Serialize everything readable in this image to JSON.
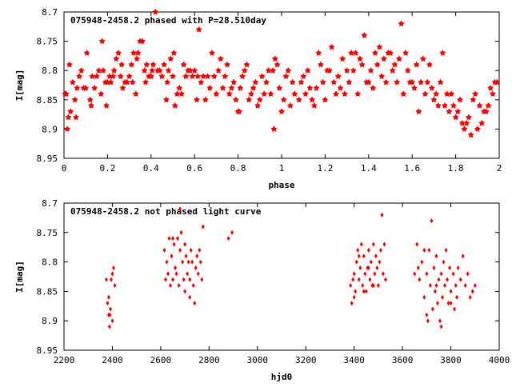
{
  "chart_data": [
    {
      "type": "scatter",
      "title": "075948-2458.2 phased with P=28.510day",
      "xlabel": "phase",
      "ylabel": "I[mag]",
      "xlim": [
        0,
        2
      ],
      "ylim": [
        8.7,
        8.95
      ],
      "y_inverted": true,
      "grid": false,
      "legend": "none",
      "marker": "star",
      "color": "#ff0000",
      "x_ticks": [
        "0",
        "0.2",
        "0.4",
        "0.6",
        "0.8",
        "1",
        "1.2",
        "1.4",
        "1.6",
        "1.8",
        "2"
      ],
      "y_ticks": [
        "8.7",
        "8.75",
        "8.8",
        "8.85",
        "8.9",
        "8.95"
      ],
      "points": [
        [
          0.005,
          8.84
        ],
        [
          0.01,
          8.84
        ],
        [
          0.015,
          8.9
        ],
        [
          0.02,
          8.88
        ],
        [
          0.025,
          8.79
        ],
        [
          0.03,
          8.87
        ],
        [
          0.04,
          8.82
        ],
        [
          0.05,
          8.85
        ],
        [
          0.055,
          8.88
        ],
        [
          0.06,
          8.83
        ],
        [
          0.07,
          8.81
        ],
        [
          0.08,
          8.8
        ],
        [
          0.09,
          8.83
        ],
        [
          0.1,
          8.83
        ],
        [
          0.105,
          8.77
        ],
        [
          0.12,
          8.85
        ],
        [
          0.125,
          8.86
        ],
        [
          0.13,
          8.81
        ],
        [
          0.14,
          8.83
        ],
        [
          0.15,
          8.81
        ],
        [
          0.16,
          8.8
        ],
        [
          0.17,
          8.84
        ],
        [
          0.175,
          8.75
        ],
        [
          0.18,
          8.8
        ],
        [
          0.19,
          8.82
        ],
        [
          0.195,
          8.86
        ],
        [
          0.2,
          8.82
        ],
        [
          0.21,
          8.81
        ],
        [
          0.215,
          8.82
        ],
        [
          0.225,
          8.81
        ],
        [
          0.23,
          8.8
        ],
        [
          0.24,
          8.78
        ],
        [
          0.25,
          8.77
        ],
        [
          0.26,
          8.81
        ],
        [
          0.265,
          8.79
        ],
        [
          0.27,
          8.83
        ],
        [
          0.28,
          8.82
        ],
        [
          0.29,
          8.82
        ],
        [
          0.3,
          8.81
        ],
        [
          0.31,
          8.79
        ],
        [
          0.315,
          8.82
        ],
        [
          0.32,
          8.77
        ],
        [
          0.33,
          8.84
        ],
        [
          0.335,
          8.78
        ],
        [
          0.34,
          8.77
        ],
        [
          0.35,
          8.75
        ],
        [
          0.36,
          8.75
        ],
        [
          0.37,
          8.8
        ],
        [
          0.375,
          8.82
        ],
        [
          0.38,
          8.79
        ],
        [
          0.39,
          8.81
        ],
        [
          0.4,
          8.81
        ],
        [
          0.405,
          8.8
        ],
        [
          0.41,
          8.79
        ],
        [
          0.42,
          8.7
        ],
        [
          0.43,
          8.8
        ],
        [
          0.44,
          8.8
        ],
        [
          0.45,
          8.81
        ],
        [
          0.46,
          8.79
        ],
        [
          0.47,
          8.85
        ],
        [
          0.475,
          8.82
        ],
        [
          0.48,
          8.8
        ],
        [
          0.49,
          8.78
        ],
        [
          0.5,
          8.81
        ],
        [
          0.505,
          8.77
        ],
        [
          0.51,
          8.86
        ],
        [
          0.52,
          8.84
        ],
        [
          0.53,
          8.83
        ],
        [
          0.54,
          8.84
        ],
        [
          0.55,
          8.79
        ],
        [
          0.56,
          8.81
        ],
        [
          0.57,
          8.8
        ],
        [
          0.58,
          8.8
        ],
        [
          0.59,
          8.81
        ],
        [
          0.6,
          8.8
        ],
        [
          0.61,
          8.85
        ],
        [
          0.615,
          8.81
        ],
        [
          0.62,
          8.73
        ],
        [
          0.63,
          8.82
        ],
        [
          0.64,
          8.81
        ],
        [
          0.65,
          8.85
        ],
        [
          0.66,
          8.81
        ],
        [
          0.67,
          8.83
        ],
        [
          0.68,
          8.77
        ],
        [
          0.69,
          8.81
        ],
        [
          0.7,
          8.84
        ],
        [
          0.71,
          8.8
        ],
        [
          0.72,
          8.78
        ],
        [
          0.73,
          8.83
        ],
        [
          0.74,
          8.81
        ],
        [
          0.75,
          8.79
        ],
        [
          0.76,
          8.84
        ],
        [
          0.77,
          8.83
        ],
        [
          0.78,
          8.82
        ],
        [
          0.79,
          8.85
        ],
        [
          0.8,
          8.87
        ],
        [
          0.805,
          8.87
        ],
        [
          0.81,
          8.83
        ],
        [
          0.82,
          8.81
        ],
        [
          0.83,
          8.8
        ],
        [
          0.84,
          8.79
        ],
        [
          0.85,
          8.85
        ],
        [
          0.86,
          8.84
        ],
        [
          0.87,
          8.83
        ],
        [
          0.88,
          8.82
        ],
        [
          0.89,
          8.86
        ],
        [
          0.9,
          8.85
        ],
        [
          0.91,
          8.81
        ],
        [
          0.92,
          8.84
        ],
        [
          0.93,
          8.82
        ],
        [
          0.94,
          8.8
        ],
        [
          0.95,
          8.84
        ],
        [
          0.96,
          8.8
        ],
        [
          0.965,
          8.9
        ],
        [
          0.97,
          8.78
        ],
        [
          0.98,
          8.79
        ],
        [
          0.99,
          8.83
        ],
        [
          1.0,
          8.87
        ],
        [
          1.01,
          8.85
        ],
        [
          1.02,
          8.81
        ],
        [
          1.03,
          8.8
        ],
        [
          1.04,
          8.86
        ],
        [
          1.05,
          8.82
        ],
        [
          1.06,
          8.84
        ],
        [
          1.08,
          8.85
        ],
        [
          1.09,
          8.82
        ],
        [
          1.1,
          8.81
        ],
        [
          1.11,
          8.84
        ],
        [
          1.12,
          8.8
        ],
        [
          1.13,
          8.83
        ],
        [
          1.14,
          8.85
        ],
        [
          1.15,
          8.86
        ],
        [
          1.16,
          8.83
        ],
        [
          1.17,
          8.77
        ],
        [
          1.18,
          8.79
        ],
        [
          1.19,
          8.82
        ],
        [
          1.2,
          8.85
        ],
        [
          1.21,
          8.8
        ],
        [
          1.22,
          8.8
        ],
        [
          1.23,
          8.76
        ],
        [
          1.24,
          8.82
        ],
        [
          1.25,
          8.84
        ],
        [
          1.26,
          8.81
        ],
        [
          1.27,
          8.83
        ],
        [
          1.28,
          8.78
        ],
        [
          1.29,
          8.84
        ],
        [
          1.3,
          8.8
        ],
        [
          1.31,
          8.82
        ],
        [
          1.32,
          8.77
        ],
        [
          1.33,
          8.8
        ],
        [
          1.34,
          8.77
        ],
        [
          1.35,
          8.84
        ],
        [
          1.36,
          8.78
        ],
        [
          1.37,
          8.79
        ],
        [
          1.38,
          8.74
        ],
        [
          1.39,
          8.82
        ],
        [
          1.4,
          8.82
        ],
        [
          1.41,
          8.8
        ],
        [
          1.42,
          8.83
        ],
        [
          1.43,
          8.77
        ],
        [
          1.44,
          8.79
        ],
        [
          1.45,
          8.76
        ],
        [
          1.46,
          8.81
        ],
        [
          1.47,
          8.78
        ],
        [
          1.48,
          8.82
        ],
        [
          1.49,
          8.77
        ],
        [
          1.5,
          8.77
        ],
        [
          1.51,
          8.8
        ],
        [
          1.52,
          8.79
        ],
        [
          1.53,
          8.82
        ],
        [
          1.54,
          8.78
        ],
        [
          1.55,
          8.72
        ],
        [
          1.56,
          8.84
        ],
        [
          1.57,
          8.77
        ],
        [
          1.58,
          8.8
        ],
        [
          1.59,
          8.82
        ],
        [
          1.6,
          8.82
        ],
        [
          1.61,
          8.83
        ],
        [
          1.62,
          8.79
        ],
        [
          1.63,
          8.87
        ],
        [
          1.64,
          8.82
        ],
        [
          1.65,
          8.78
        ],
        [
          1.66,
          8.84
        ],
        [
          1.67,
          8.82
        ],
        [
          1.68,
          8.79
        ],
        [
          1.69,
          8.83
        ],
        [
          1.7,
          8.85
        ],
        [
          1.71,
          8.84
        ],
        [
          1.72,
          8.86
        ],
        [
          1.73,
          8.82
        ],
        [
          1.74,
          8.77
        ],
        [
          1.75,
          8.86
        ],
        [
          1.76,
          8.84
        ],
        [
          1.77,
          8.87
        ],
        [
          1.78,
          8.84
        ],
        [
          1.79,
          8.86
        ],
        [
          1.8,
          8.88
        ],
        [
          1.81,
          8.87
        ],
        [
          1.82,
          8.85
        ],
        [
          1.83,
          8.89
        ],
        [
          1.84,
          8.9
        ],
        [
          1.85,
          8.89
        ],
        [
          1.86,
          8.88
        ],
        [
          1.87,
          8.91
        ],
        [
          1.88,
          8.85
        ],
        [
          1.89,
          8.84
        ],
        [
          1.9,
          8.9
        ],
        [
          1.91,
          8.86
        ],
        [
          1.92,
          8.89
        ],
        [
          1.93,
          8.87
        ],
        [
          1.94,
          8.87
        ],
        [
          1.95,
          8.86
        ],
        [
          1.96,
          8.83
        ],
        [
          1.97,
          8.84
        ],
        [
          1.98,
          8.82
        ],
        [
          1.99,
          8.82
        ]
      ]
    },
    {
      "type": "scatter",
      "title": "075948-2458.2 not phased light curve",
      "xlabel": "hjd0",
      "ylabel": "I[mag]",
      "xlim": [
        2200,
        4000
      ],
      "ylim": [
        8.7,
        8.95
      ],
      "y_inverted": true,
      "grid": false,
      "legend": "none",
      "marker": "diamond",
      "color": "#ff0000",
      "x_ticks": [
        "2200",
        "2400",
        "2600",
        "2800",
        "3000",
        "3200",
        "3400",
        "3600",
        "3800",
        "4000"
      ],
      "y_ticks": [
        "8.7",
        "8.75",
        "8.8",
        "8.85",
        "8.9",
        "8.95"
      ],
      "points": [
        [
          2375,
          8.83
        ],
        [
          2380,
          8.87
        ],
        [
          2385,
          8.89
        ],
        [
          2388,
          8.91
        ],
        [
          2390,
          8.89
        ],
        [
          2392,
          8.88
        ],
        [
          2395,
          8.83
        ],
        [
          2400,
          8.82
        ],
        [
          2405,
          8.81
        ],
        [
          2410,
          8.84
        ],
        [
          2400,
          8.9
        ],
        [
          2385,
          8.86
        ],
        [
          2615,
          8.78
        ],
        [
          2620,
          8.83
        ],
        [
          2625,
          8.8
        ],
        [
          2630,
          8.82
        ],
        [
          2635,
          8.76
        ],
        [
          2640,
          8.84
        ],
        [
          2645,
          8.79
        ],
        [
          2650,
          8.83
        ],
        [
          2655,
          8.77
        ],
        [
          2660,
          8.81
        ],
        [
          2665,
          8.82
        ],
        [
          2670,
          8.76
        ],
        [
          2675,
          8.84
        ],
        [
          2680,
          8.78
        ],
        [
          2685,
          8.75
        ],
        [
          2690,
          8.8
        ],
        [
          2695,
          8.83
        ],
        [
          2700,
          8.85
        ],
        [
          2705,
          8.79
        ],
        [
          2710,
          8.82
        ],
        [
          2715,
          8.8
        ],
        [
          2720,
          8.83
        ],
        [
          2725,
          8.78
        ],
        [
          2730,
          8.8
        ],
        [
          2735,
          8.84
        ],
        [
          2740,
          8.87
        ],
        [
          2745,
          8.81
        ],
        [
          2750,
          8.79
        ],
        [
          2755,
          8.82
        ],
        [
          2760,
          8.78
        ],
        [
          2765,
          8.8
        ],
        [
          2770,
          8.83
        ],
        [
          2775,
          8.74
        ],
        [
          2680,
          8.71
        ],
        [
          2650,
          8.76
        ],
        [
          2700,
          8.77
        ],
        [
          2720,
          8.86
        ],
        [
          2880,
          8.76
        ],
        [
          2895,
          8.75
        ],
        [
          3385,
          8.84
        ],
        [
          3390,
          8.87
        ],
        [
          3395,
          8.83
        ],
        [
          3400,
          8.82
        ],
        [
          3405,
          8.85
        ],
        [
          3410,
          8.8
        ],
        [
          3415,
          8.78
        ],
        [
          3420,
          8.83
        ],
        [
          3425,
          8.81
        ],
        [
          3430,
          8.77
        ],
        [
          3435,
          8.84
        ],
        [
          3440,
          8.79
        ],
        [
          3445,
          8.82
        ],
        [
          3450,
          8.85
        ],
        [
          3455,
          8.81
        ],
        [
          3460,
          8.78
        ],
        [
          3465,
          8.83
        ],
        [
          3470,
          8.8
        ],
        [
          3475,
          8.84
        ],
        [
          3480,
          8.77
        ],
        [
          3485,
          8.82
        ],
        [
          3490,
          8.79
        ],
        [
          3495,
          8.81
        ],
        [
          3500,
          8.84
        ],
        [
          3505,
          8.8
        ],
        [
          3510,
          8.78
        ],
        [
          3515,
          8.72
        ],
        [
          3520,
          8.82
        ],
        [
          3525,
          8.77
        ],
        [
          3530,
          8.83
        ],
        [
          3400,
          8.86
        ],
        [
          3440,
          8.85
        ],
        [
          3480,
          8.84
        ],
        [
          3460,
          8.81
        ],
        [
          3420,
          8.79
        ],
        [
          3650,
          8.82
        ],
        [
          3660,
          8.77
        ],
        [
          3665,
          8.81
        ],
        [
          3670,
          8.83
        ],
        [
          3680,
          8.8
        ],
        [
          3690,
          8.86
        ],
        [
          3700,
          8.82
        ],
        [
          3705,
          8.9
        ],
        [
          3710,
          8.78
        ],
        [
          3715,
          8.84
        ],
        [
          3720,
          8.73
        ],
        [
          3725,
          8.88
        ],
        [
          3730,
          8.81
        ],
        [
          3735,
          8.85
        ],
        [
          3740,
          8.79
        ],
        [
          3745,
          8.87
        ],
        [
          3750,
          8.83
        ],
        [
          3755,
          8.9
        ],
        [
          3760,
          8.82
        ],
        [
          3765,
          8.86
        ],
        [
          3770,
          8.8
        ],
        [
          3775,
          8.84
        ],
        [
          3780,
          8.78
        ],
        [
          3785,
          8.83
        ],
        [
          3790,
          8.87
        ],
        [
          3795,
          8.81
        ],
        [
          3800,
          8.85
        ],
        [
          3810,
          8.82
        ],
        [
          3815,
          8.88
        ],
        [
          3820,
          8.84
        ],
        [
          3825,
          8.86
        ],
        [
          3830,
          8.81
        ],
        [
          3840,
          8.83
        ],
        [
          3850,
          8.79
        ],
        [
          3860,
          8.84
        ],
        [
          3870,
          8.82
        ],
        [
          3880,
          8.86
        ],
        [
          3890,
          8.85
        ],
        [
          3900,
          8.84
        ],
        [
          3700,
          8.89
        ],
        [
          3760,
          8.91
        ],
        [
          3740,
          8.84
        ],
        [
          3800,
          8.87
        ],
        [
          3690,
          8.78
        ]
      ]
    }
  ]
}
